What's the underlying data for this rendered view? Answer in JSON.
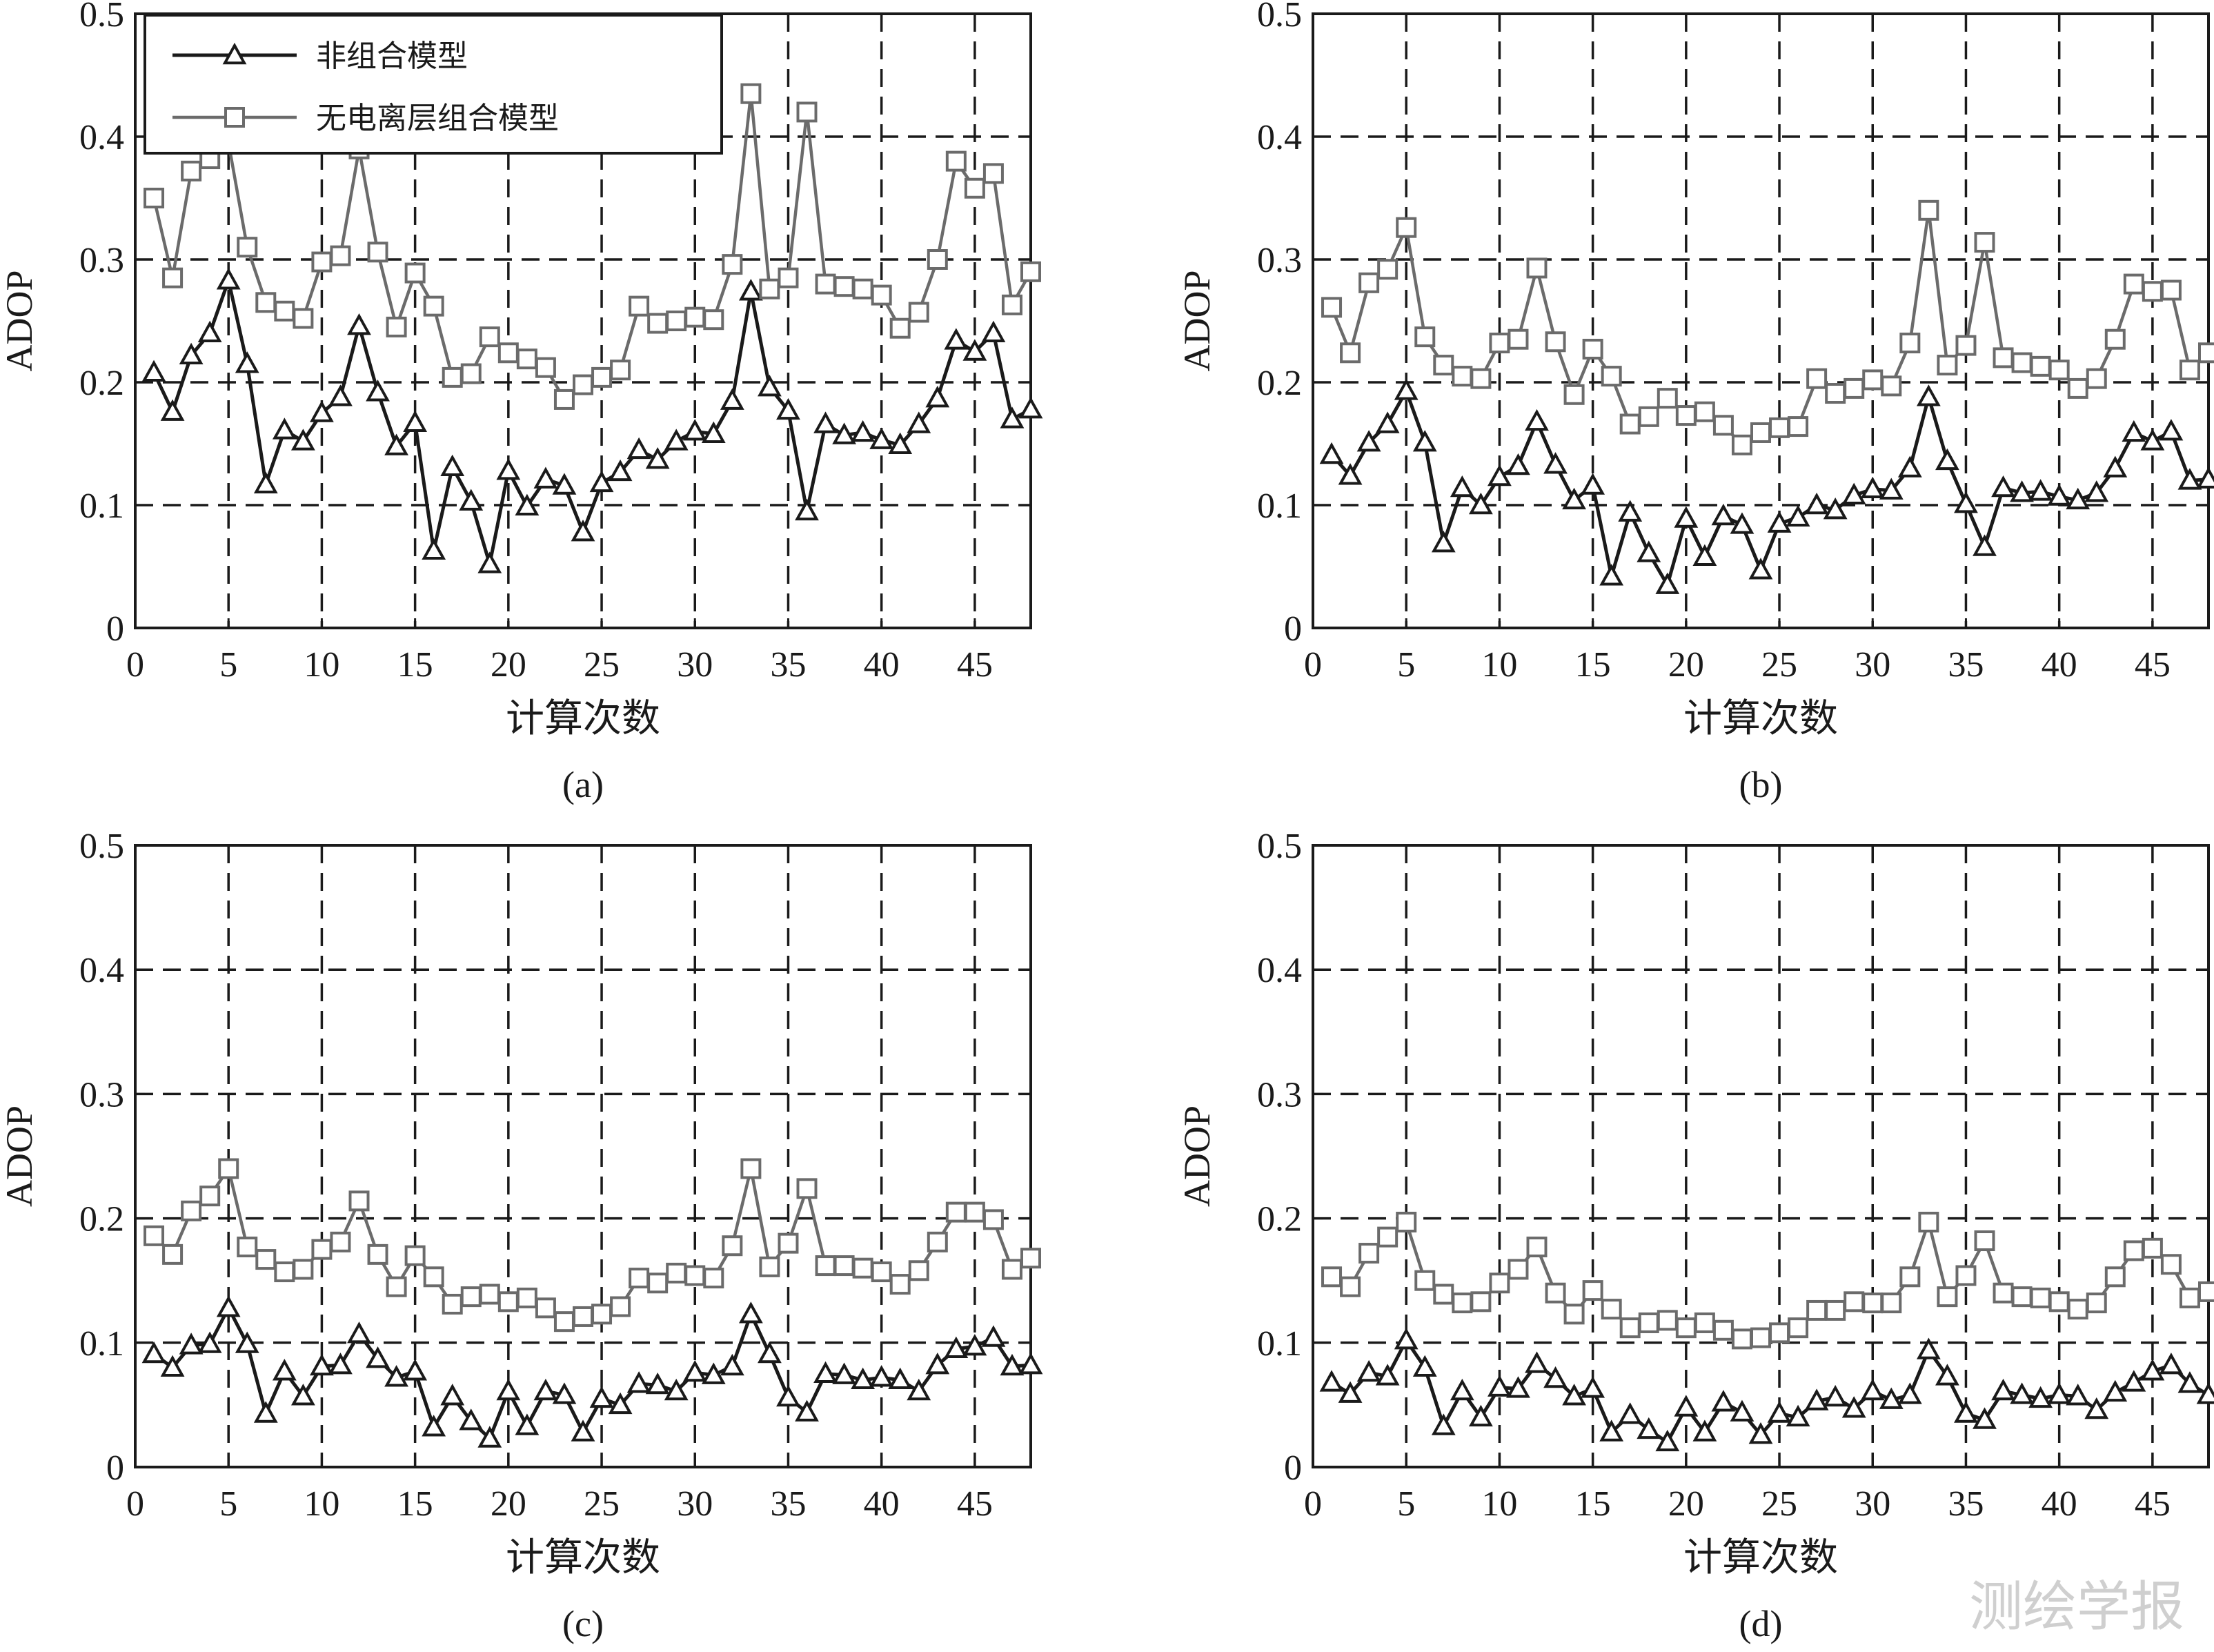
{
  "watermark": "测绘学报",
  "legend": {
    "series1": "非组合模型",
    "series2": "无电离层组合模型"
  },
  "colors": {
    "series1": "#1a1a1a",
    "series2": "#6b6b6b",
    "grid": "#1a1a1a"
  },
  "chart_data": [
    {
      "type": "line",
      "panel": "(a)",
      "caption": "(a)",
      "xlabel": "计算次数",
      "ylabel": "ADOP",
      "xlim": [
        0,
        48
      ],
      "ylim": [
        0,
        0.5
      ],
      "xticks": [
        0,
        5,
        10,
        15,
        20,
        25,
        30,
        35,
        40,
        45
      ],
      "yticks": [
        0,
        0.1,
        0.2,
        0.3,
        0.4,
        0.5
      ],
      "ytick_labels": [
        "0",
        "0.1",
        "0.2",
        "0.3",
        "0.4",
        "0.5"
      ],
      "grid": true,
      "legend_position": "top-left",
      "x": [
        1,
        2,
        3,
        4,
        5,
        6,
        7,
        8,
        9,
        10,
        11,
        12,
        13,
        14,
        15,
        16,
        17,
        18,
        19,
        20,
        21,
        22,
        23,
        24,
        25,
        26,
        27,
        28,
        29,
        30,
        31,
        32,
        33,
        34,
        35,
        36,
        37,
        38,
        39,
        40,
        41,
        42,
        43,
        44,
        45,
        46,
        47,
        48
      ],
      "series": [
        {
          "name": "非组合模型",
          "marker": "triangle",
          "values": [
            0.208,
            0.176,
            0.222,
            0.24,
            0.283,
            0.215,
            0.117,
            0.161,
            0.152,
            0.175,
            0.188,
            0.246,
            0.192,
            0.148,
            0.167,
            0.063,
            0.131,
            0.103,
            0.052,
            0.128,
            0.099,
            0.121,
            0.116,
            0.078,
            0.118,
            0.127,
            0.145,
            0.137,
            0.152,
            0.16,
            0.158,
            0.185,
            0.274,
            0.196,
            0.177,
            0.095,
            0.166,
            0.157,
            0.159,
            0.153,
            0.149,
            0.166,
            0.187,
            0.234,
            0.225,
            0.24,
            0.17,
            0.178
          ]
        },
        {
          "name": "无电离层组合模型",
          "marker": "square",
          "values": [
            0.35,
            0.285,
            0.372,
            0.382,
            0.395,
            0.31,
            0.265,
            0.258,
            0.252,
            0.298,
            0.303,
            0.39,
            0.306,
            0.245,
            0.289,
            0.262,
            0.204,
            0.207,
            0.237,
            0.224,
            0.219,
            0.212,
            0.186,
            0.198,
            0.204,
            0.21,
            0.262,
            0.248,
            0.25,
            0.253,
            0.251,
            0.296,
            0.435,
            0.276,
            0.285,
            0.42,
            0.28,
            0.278,
            0.276,
            0.271,
            0.244,
            0.257,
            0.3,
            0.38,
            0.358,
            0.37,
            0.263,
            0.29
          ]
        }
      ]
    },
    {
      "type": "line",
      "panel": "(b)",
      "caption": "(b)",
      "xlabel": "计算次数",
      "ylabel": "ADOP",
      "xlim": [
        0,
        48
      ],
      "ylim": [
        0,
        0.5
      ],
      "xticks": [
        0,
        5,
        10,
        15,
        20,
        25,
        30,
        35,
        40,
        45
      ],
      "yticks": [
        0,
        0.1,
        0.2,
        0.3,
        0.4,
        0.5
      ],
      "ytick_labels": [
        "0",
        "0.1",
        "0.2",
        "0.3",
        "0.4",
        "0.5"
      ],
      "grid": true,
      "x": [
        1,
        2,
        3,
        4,
        5,
        6,
        7,
        8,
        9,
        10,
        11,
        12,
        13,
        14,
        15,
        16,
        17,
        18,
        19,
        20,
        21,
        22,
        23,
        24,
        25,
        26,
        27,
        28,
        29,
        30,
        31,
        32,
        33,
        34,
        35,
        36,
        37,
        38,
        39,
        40,
        41,
        42,
        43,
        44,
        45,
        46,
        47,
        48
      ],
      "series": [
        {
          "name": "非组合模型",
          "marker": "triangle",
          "values": [
            0.141,
            0.124,
            0.151,
            0.166,
            0.193,
            0.151,
            0.069,
            0.114,
            0.1,
            0.123,
            0.132,
            0.168,
            0.133,
            0.104,
            0.116,
            0.042,
            0.094,
            0.061,
            0.035,
            0.089,
            0.058,
            0.091,
            0.084,
            0.047,
            0.085,
            0.09,
            0.1,
            0.096,
            0.108,
            0.113,
            0.112,
            0.13,
            0.188,
            0.136,
            0.101,
            0.066,
            0.114,
            0.11,
            0.111,
            0.107,
            0.104,
            0.11,
            0.13,
            0.159,
            0.152,
            0.16,
            0.12,
            0.121
          ]
        },
        {
          "name": "无电离层组合模型",
          "marker": "square",
          "values": [
            0.261,
            0.224,
            0.281,
            0.292,
            0.326,
            0.237,
            0.214,
            0.205,
            0.203,
            0.232,
            0.235,
            0.293,
            0.233,
            0.19,
            0.227,
            0.205,
            0.166,
            0.172,
            0.187,
            0.173,
            0.176,
            0.165,
            0.149,
            0.159,
            0.163,
            0.164,
            0.203,
            0.191,
            0.195,
            0.202,
            0.197,
            0.232,
            0.34,
            0.214,
            0.23,
            0.314,
            0.22,
            0.216,
            0.213,
            0.21,
            0.195,
            0.203,
            0.235,
            0.28,
            0.274,
            0.275,
            0.21,
            0.224
          ]
        }
      ]
    },
    {
      "type": "line",
      "panel": "(c)",
      "caption": "(c)",
      "xlabel": "计算次数",
      "ylabel": "ADOP",
      "xlim": [
        0,
        48
      ],
      "ylim": [
        0,
        0.5
      ],
      "xticks": [
        0,
        5,
        10,
        15,
        20,
        25,
        30,
        35,
        40,
        45
      ],
      "yticks": [
        0,
        0.1,
        0.2,
        0.3,
        0.4,
        0.5
      ],
      "ytick_labels": [
        "0",
        "0.1",
        "0.2",
        "0.3",
        "0.4",
        "0.5"
      ],
      "grid": true,
      "x": [
        1,
        2,
        3,
        4,
        5,
        6,
        7,
        8,
        9,
        10,
        11,
        12,
        13,
        14,
        15,
        16,
        17,
        18,
        19,
        20,
        21,
        22,
        23,
        24,
        25,
        26,
        27,
        28,
        29,
        30,
        31,
        32,
        33,
        34,
        35,
        36,
        37,
        38,
        39,
        40,
        41,
        42,
        43,
        44,
        45,
        46,
        47,
        48
      ],
      "series": [
        {
          "name": "非组合模型",
          "marker": "triangle",
          "values": [
            0.091,
            0.08,
            0.098,
            0.099,
            0.128,
            0.099,
            0.043,
            0.077,
            0.057,
            0.081,
            0.082,
            0.107,
            0.087,
            0.072,
            0.077,
            0.032,
            0.057,
            0.037,
            0.023,
            0.061,
            0.033,
            0.061,
            0.058,
            0.028,
            0.055,
            0.05,
            0.067,
            0.066,
            0.061,
            0.076,
            0.074,
            0.081,
            0.123,
            0.091,
            0.056,
            0.044,
            0.075,
            0.074,
            0.07,
            0.072,
            0.07,
            0.061,
            0.082,
            0.095,
            0.097,
            0.104,
            0.081,
            0.082
          ]
        },
        {
          "name": "无电离层组合模型",
          "marker": "square",
          "values": [
            0.186,
            0.171,
            0.206,
            0.218,
            0.24,
            0.177,
            0.167,
            0.157,
            0.159,
            0.175,
            0.181,
            0.214,
            0.171,
            0.145,
            0.17,
            0.153,
            0.131,
            0.137,
            0.139,
            0.133,
            0.136,
            0.128,
            0.117,
            0.121,
            0.123,
            0.129,
            0.152,
            0.148,
            0.156,
            0.154,
            0.152,
            0.178,
            0.24,
            0.161,
            0.18,
            0.224,
            0.162,
            0.162,
            0.16,
            0.157,
            0.147,
            0.158,
            0.181,
            0.205,
            0.205,
            0.199,
            0.159,
            0.168
          ]
        }
      ]
    },
    {
      "type": "line",
      "panel": "(d)",
      "caption": "(d)",
      "xlabel": "计算次数",
      "ylabel": "ADOP",
      "xlim": [
        0,
        48
      ],
      "ylim": [
        0,
        0.5
      ],
      "xticks": [
        0,
        5,
        10,
        15,
        20,
        25,
        30,
        35,
        40,
        45
      ],
      "yticks": [
        0,
        0.1,
        0.2,
        0.3,
        0.4,
        0.5
      ],
      "ytick_labels": [
        "0",
        "0.1",
        "0.2",
        "0.3",
        "0.4",
        "0.5"
      ],
      "grid": true,
      "x": [
        1,
        2,
        3,
        4,
        5,
        6,
        7,
        8,
        9,
        10,
        11,
        12,
        13,
        14,
        15,
        16,
        17,
        18,
        19,
        20,
        21,
        22,
        23,
        24,
        25,
        26,
        27,
        28,
        29,
        30,
        31,
        32,
        33,
        34,
        35,
        36,
        37,
        38,
        39,
        40,
        41,
        42,
        43,
        44,
        45,
        46,
        47,
        48
      ],
      "series": [
        {
          "name": "非组合模型",
          "marker": "triangle",
          "values": [
            0.068,
            0.059,
            0.076,
            0.073,
            0.102,
            0.08,
            0.033,
            0.061,
            0.04,
            0.064,
            0.063,
            0.083,
            0.071,
            0.057,
            0.063,
            0.028,
            0.042,
            0.03,
            0.02,
            0.048,
            0.028,
            0.052,
            0.044,
            0.026,
            0.043,
            0.04,
            0.053,
            0.056,
            0.047,
            0.061,
            0.054,
            0.058,
            0.094,
            0.073,
            0.043,
            0.038,
            0.061,
            0.058,
            0.055,
            0.058,
            0.057,
            0.046,
            0.06,
            0.068,
            0.077,
            0.082,
            0.067,
            0.058
          ]
        },
        {
          "name": "无电离层组合模型",
          "marker": "square",
          "values": [
            0.153,
            0.145,
            0.172,
            0.185,
            0.197,
            0.15,
            0.139,
            0.132,
            0.133,
            0.148,
            0.159,
            0.177,
            0.14,
            0.123,
            0.142,
            0.127,
            0.112,
            0.116,
            0.118,
            0.112,
            0.116,
            0.11,
            0.103,
            0.104,
            0.108,
            0.112,
            0.126,
            0.126,
            0.133,
            0.132,
            0.132,
            0.153,
            0.197,
            0.137,
            0.154,
            0.182,
            0.14,
            0.137,
            0.136,
            0.133,
            0.127,
            0.132,
            0.153,
            0.174,
            0.176,
            0.163,
            0.136,
            0.141
          ]
        }
      ]
    }
  ]
}
